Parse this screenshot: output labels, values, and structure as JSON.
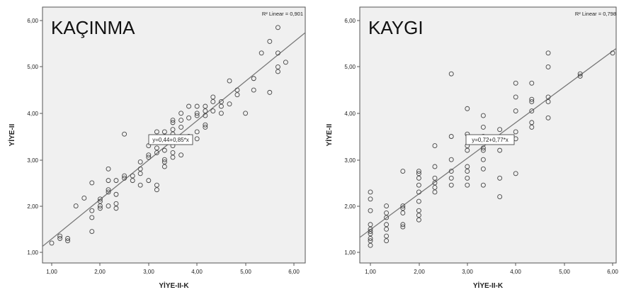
{
  "chart_data": [
    {
      "type": "scatter",
      "title": "KAÇINMA",
      "xlabel": "YİYE-II-K",
      "ylabel": "YİYE-II",
      "xlim": [
        0.7,
        6.3
      ],
      "ylim": [
        0.85,
        6.15
      ],
      "x_ticks": [
        "1,00",
        "2,00",
        "3,00",
        "4,00",
        "5,00",
        "6,00"
      ],
      "y_ticks": [
        "1,00",
        "2,00",
        "3,00",
        "4,00",
        "5,00",
        "6,00"
      ],
      "r2_label": "R² Linear = 0,901",
      "equation": "y=0,44+0,85*x",
      "fit": {
        "intercept": 0.44,
        "slope": 0.85
      },
      "grid": false,
      "points": [
        [
          1.0,
          1.2
        ],
        [
          1.17,
          1.35
        ],
        [
          1.17,
          1.3
        ],
        [
          1.33,
          1.25
        ],
        [
          1.33,
          1.3
        ],
        [
          1.5,
          2.0
        ],
        [
          1.67,
          2.17
        ],
        [
          1.83,
          1.45
        ],
        [
          1.83,
          1.9
        ],
        [
          1.83,
          1.75
        ],
        [
          1.83,
          2.5
        ],
        [
          2.0,
          2.0
        ],
        [
          2.0,
          2.1
        ],
        [
          2.0,
          2.15
        ],
        [
          2.0,
          1.95
        ],
        [
          2.17,
          2.8
        ],
        [
          2.17,
          2.35
        ],
        [
          2.17,
          2.3
        ],
        [
          2.17,
          2.55
        ],
        [
          2.17,
          2.0
        ],
        [
          2.33,
          2.05
        ],
        [
          2.33,
          1.95
        ],
        [
          2.33,
          2.25
        ],
        [
          2.33,
          2.55
        ],
        [
          2.5,
          2.6
        ],
        [
          2.5,
          2.65
        ],
        [
          2.5,
          3.55
        ],
        [
          2.67,
          2.55
        ],
        [
          2.67,
          2.65
        ],
        [
          2.83,
          2.7
        ],
        [
          2.83,
          2.8
        ],
        [
          2.83,
          2.45
        ],
        [
          2.83,
          2.95
        ],
        [
          3.0,
          3.1
        ],
        [
          3.0,
          3.05
        ],
        [
          3.0,
          2.55
        ],
        [
          3.0,
          3.3
        ],
        [
          3.17,
          3.15
        ],
        [
          3.17,
          3.25
        ],
        [
          3.17,
          3.45
        ],
        [
          3.17,
          2.45
        ],
        [
          3.17,
          2.35
        ],
        [
          3.17,
          3.6
        ],
        [
          3.33,
          3.0
        ],
        [
          3.33,
          2.95
        ],
        [
          3.33,
          2.85
        ],
        [
          3.33,
          3.2
        ],
        [
          3.33,
          3.6
        ],
        [
          3.33,
          3.5
        ],
        [
          3.5,
          3.85
        ],
        [
          3.5,
          3.8
        ],
        [
          3.5,
          3.65
        ],
        [
          3.5,
          3.55
        ],
        [
          3.5,
          3.3
        ],
        [
          3.5,
          3.15
        ],
        [
          3.5,
          3.05
        ],
        [
          3.67,
          3.85
        ],
        [
          3.67,
          4.0
        ],
        [
          3.67,
          3.7
        ],
        [
          3.67,
          3.4
        ],
        [
          3.67,
          3.1
        ],
        [
          3.83,
          4.15
        ],
        [
          3.83,
          3.9
        ],
        [
          3.83,
          3.5
        ],
        [
          4.0,
          4.15
        ],
        [
          4.0,
          4.0
        ],
        [
          4.0,
          3.95
        ],
        [
          4.0,
          3.6
        ],
        [
          4.0,
          3.45
        ],
        [
          4.17,
          4.15
        ],
        [
          4.17,
          4.05
        ],
        [
          4.17,
          3.95
        ],
        [
          4.17,
          3.75
        ],
        [
          4.17,
          3.7
        ],
        [
          4.33,
          4.35
        ],
        [
          4.33,
          4.25
        ],
        [
          4.33,
          4.05
        ],
        [
          4.5,
          4.25
        ],
        [
          4.5,
          4.15
        ],
        [
          4.5,
          4.0
        ],
        [
          4.67,
          4.7
        ],
        [
          4.67,
          4.2
        ],
        [
          4.83,
          4.5
        ],
        [
          4.83,
          4.4
        ],
        [
          5.0,
          4.0
        ],
        [
          5.17,
          4.75
        ],
        [
          5.17,
          4.5
        ],
        [
          5.33,
          5.3
        ],
        [
          5.5,
          5.55
        ],
        [
          5.5,
          4.45
        ],
        [
          5.67,
          5.85
        ],
        [
          5.67,
          5.3
        ],
        [
          5.67,
          5.0
        ],
        [
          5.67,
          4.9
        ],
        [
          5.83,
          5.1
        ]
      ]
    },
    {
      "type": "scatter",
      "title": "KAYGI",
      "xlabel": "YİYE-II-K",
      "ylabel": "YİYE-II",
      "xlim": [
        0.7,
        6.2
      ],
      "ylim": [
        0.85,
        6.15
      ],
      "x_ticks": [
        "1,00",
        "2,00",
        "3,00",
        "4,00",
        "5,00",
        "6,00"
      ],
      "y_ticks": [
        "1,00",
        "2,00",
        "3,00",
        "4,00",
        "5,00",
        "6,00"
      ],
      "r2_label": "R² Linear = 0,798",
      "equation": "y=0,72+0,77*x",
      "fit": {
        "intercept": 0.72,
        "slope": 0.77
      },
      "grid": false,
      "points": [
        [
          1.0,
          2.3
        ],
        [
          1.0,
          2.15
        ],
        [
          1.0,
          1.9
        ],
        [
          1.0,
          1.6
        ],
        [
          1.0,
          1.5
        ],
        [
          1.0,
          1.45
        ],
        [
          1.0,
          1.4
        ],
        [
          1.0,
          1.3
        ],
        [
          1.0,
          1.25
        ],
        [
          1.0,
          1.15
        ],
        [
          1.33,
          2.0
        ],
        [
          1.33,
          1.85
        ],
        [
          1.33,
          1.75
        ],
        [
          1.33,
          1.6
        ],
        [
          1.33,
          1.5
        ],
        [
          1.33,
          1.35
        ],
        [
          1.33,
          1.25
        ],
        [
          1.67,
          2.75
        ],
        [
          1.67,
          2.0
        ],
        [
          1.67,
          1.95
        ],
        [
          1.67,
          1.85
        ],
        [
          1.67,
          1.6
        ],
        [
          1.67,
          1.55
        ],
        [
          2.0,
          2.75
        ],
        [
          2.0,
          2.7
        ],
        [
          2.0,
          2.6
        ],
        [
          2.0,
          2.45
        ],
        [
          2.0,
          2.3
        ],
        [
          2.0,
          2.1
        ],
        [
          2.0,
          1.9
        ],
        [
          2.0,
          1.8
        ],
        [
          2.0,
          1.7
        ],
        [
          2.33,
          3.3
        ],
        [
          2.33,
          2.85
        ],
        [
          2.33,
          2.6
        ],
        [
          2.33,
          2.5
        ],
        [
          2.33,
          2.4
        ],
        [
          2.33,
          2.3
        ],
        [
          2.67,
          4.85
        ],
        [
          2.67,
          3.5
        ],
        [
          2.67,
          3.0
        ],
        [
          2.67,
          2.75
        ],
        [
          2.67,
          2.6
        ],
        [
          2.67,
          2.45
        ],
        [
          3.0,
          4.1
        ],
        [
          3.0,
          3.55
        ],
        [
          3.0,
          3.3
        ],
        [
          3.0,
          3.2
        ],
        [
          3.0,
          2.85
        ],
        [
          3.0,
          2.75
        ],
        [
          3.0,
          2.6
        ],
        [
          3.0,
          2.45
        ],
        [
          3.33,
          3.95
        ],
        [
          3.33,
          3.7
        ],
        [
          3.33,
          3.5
        ],
        [
          3.33,
          3.25
        ],
        [
          3.33,
          3.2
        ],
        [
          3.33,
          3.0
        ],
        [
          3.33,
          2.8
        ],
        [
          3.33,
          2.45
        ],
        [
          3.67,
          3.65
        ],
        [
          3.67,
          3.2
        ],
        [
          3.67,
          2.6
        ],
        [
          3.67,
          2.2
        ],
        [
          4.0,
          4.65
        ],
        [
          4.0,
          4.35
        ],
        [
          4.0,
          4.05
        ],
        [
          4.0,
          3.6
        ],
        [
          4.0,
          3.45
        ],
        [
          4.0,
          2.7
        ],
        [
          4.33,
          4.65
        ],
        [
          4.33,
          4.3
        ],
        [
          4.33,
          4.25
        ],
        [
          4.33,
          4.05
        ],
        [
          4.33,
          3.8
        ],
        [
          4.33,
          3.7
        ],
        [
          4.67,
          5.3
        ],
        [
          4.67,
          5.0
        ],
        [
          4.67,
          4.35
        ],
        [
          4.67,
          4.25
        ],
        [
          4.67,
          3.9
        ],
        [
          5.33,
          4.85
        ],
        [
          5.33,
          4.8
        ],
        [
          6.0,
          5.3
        ]
      ]
    }
  ]
}
